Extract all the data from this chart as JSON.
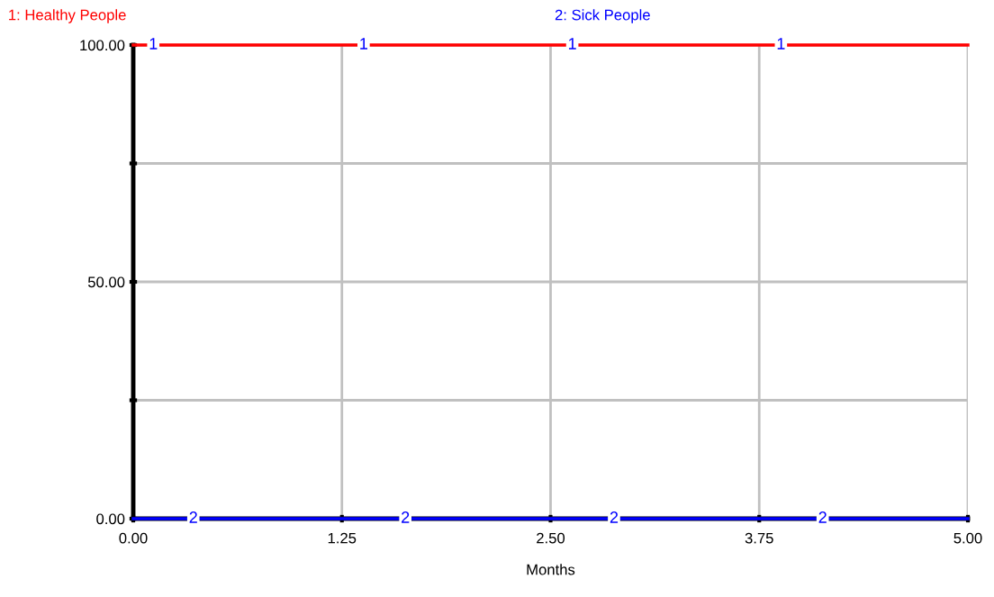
{
  "chart_data": {
    "type": "line",
    "xlabel": "Months",
    "legend": "top",
    "grid": true,
    "marker": "none",
    "line_style": "solid",
    "x": [
      0,
      5
    ],
    "series": [
      {
        "name": "1: Healthy People",
        "color": "#ff0000",
        "values": [
          100,
          100
        ]
      },
      {
        "name": "2: Sick People",
        "color": "#0000ff",
        "values": [
          0,
          0
        ]
      }
    ],
    "xlim": [
      0,
      5
    ],
    "ylim": [
      0,
      100
    ],
    "xticks": [
      {
        "value": 0,
        "label": "0.00"
      },
      {
        "value": 1.25,
        "label": "1.25"
      },
      {
        "value": 2.5,
        "label": "2.50"
      },
      {
        "value": 3.75,
        "label": "3.75"
      },
      {
        "value": 5,
        "label": "5.00"
      }
    ],
    "yticks": [
      {
        "value": 0,
        "label": "0.00"
      },
      {
        "value": 25,
        "label": null
      },
      {
        "value": 50,
        "label": "50.00"
      },
      {
        "value": 75,
        "label": null
      },
      {
        "value": 100,
        "label": "100.00"
      }
    ],
    "annotations": [
      {
        "text": "1",
        "x": 0.12,
        "y": 100
      },
      {
        "text": "1",
        "x": 1.38,
        "y": 100
      },
      {
        "text": "1",
        "x": 2.63,
        "y": 100
      },
      {
        "text": "1",
        "x": 3.88,
        "y": 100
      },
      {
        "text": "2",
        "x": 0.36,
        "y": 0
      },
      {
        "text": "2",
        "x": 1.63,
        "y": 0
      },
      {
        "text": "2",
        "x": 2.88,
        "y": 0
      },
      {
        "text": "2",
        "x": 4.13,
        "y": 0
      }
    ]
  }
}
